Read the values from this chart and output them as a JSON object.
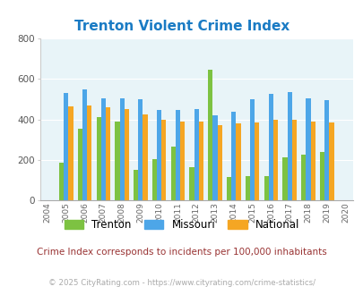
{
  "title": "Trenton Violent Crime Index",
  "years": [
    2004,
    2005,
    2006,
    2007,
    2008,
    2009,
    2010,
    2011,
    2012,
    2013,
    2014,
    2015,
    2016,
    2017,
    2018,
    2019,
    2020
  ],
  "trenton": [
    null,
    185,
    355,
    410,
    390,
    150,
    205,
    265,
    165,
    645,
    115,
    120,
    120,
    215,
    225,
    240,
    null
  ],
  "missouri": [
    null,
    530,
    550,
    505,
    505,
    500,
    445,
    445,
    450,
    420,
    440,
    500,
    525,
    535,
    505,
    495,
    null
  ],
  "national": [
    null,
    465,
    470,
    460,
    450,
    425,
    400,
    390,
    390,
    370,
    380,
    385,
    400,
    400,
    390,
    385,
    null
  ],
  "trenton_color": "#7dc242",
  "missouri_color": "#4da6e8",
  "national_color": "#f5a623",
  "bg_color": "#e8f4f8",
  "ylim": [
    0,
    800
  ],
  "yticks": [
    0,
    200,
    400,
    600,
    800
  ],
  "title_color": "#1a7bc4",
  "subtitle": "Crime Index corresponds to incidents per 100,000 inhabitants",
  "footer": "© 2025 CityRating.com - https://www.cityrating.com/crime-statistics/",
  "subtitle_color": "#993333",
  "footer_color": "#aaaaaa"
}
